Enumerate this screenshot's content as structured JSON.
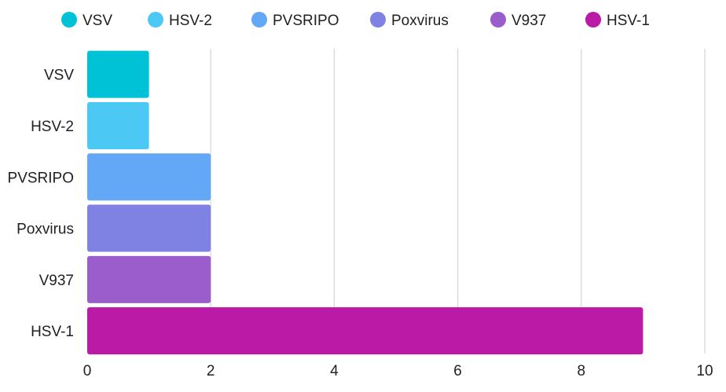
{
  "chart_data": {
    "type": "bar",
    "orientation": "horizontal",
    "categories": [
      "VSV",
      "HSV-2",
      "PVSRIPO",
      "Poxvirus",
      "V937",
      "HSV-1"
    ],
    "values": [
      1,
      1,
      2,
      2,
      2,
      9
    ],
    "colors": [
      "#00C2D6",
      "#4CC8F5",
      "#62A8F7",
      "#7F82E3",
      "#9B5CCC",
      "#BA1AA6"
    ],
    "xlim": [
      0,
      10
    ],
    "xticks": [
      0,
      2,
      4,
      6,
      8,
      10
    ],
    "grid": "vertical",
    "legend": {
      "position": "top",
      "entries": [
        "VSV",
        "HSV-2",
        "PVSRIPO",
        "Poxvirus",
        "V937",
        "HSV-1"
      ]
    },
    "title": "",
    "xlabel": "",
    "ylabel": ""
  }
}
